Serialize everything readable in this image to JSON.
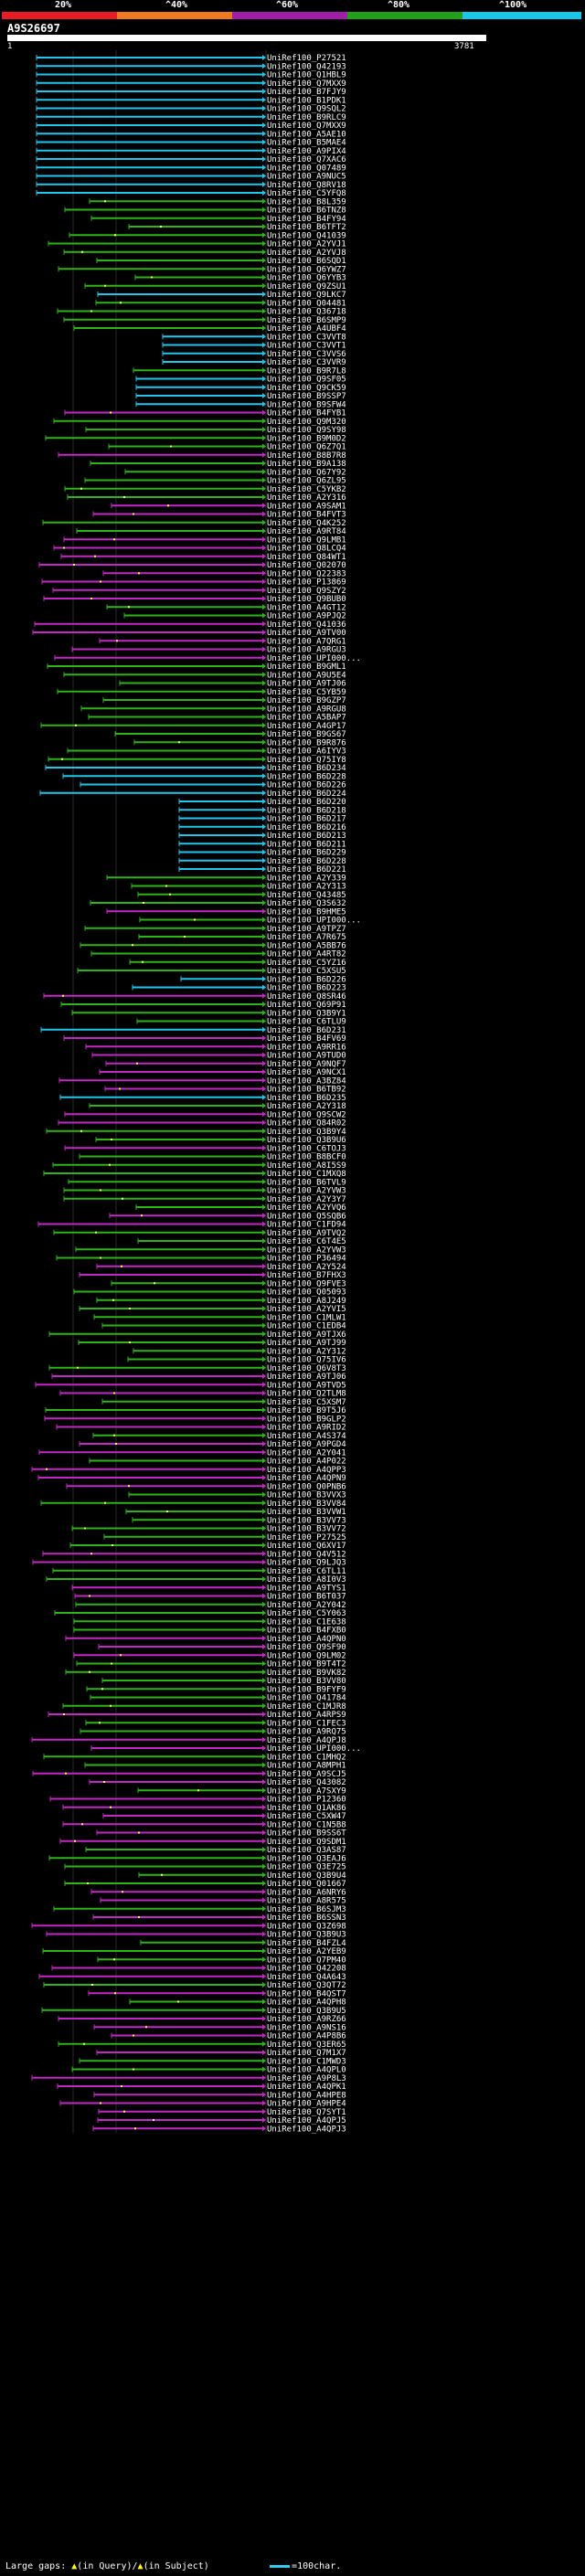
{
  "scale": {
    "labels": [
      "20%",
      "^40%",
      "^60%",
      "^80%",
      "^100%"
    ],
    "colors": [
      "#e81c24",
      "#f07a20",
      "#a01fa8",
      "#22a11a",
      "#19c8e8"
    ]
  },
  "query": {
    "id": "A9S26697",
    "start": "1",
    "end": "3781"
  },
  "hits": [
    {
      "label": "UniRef100_P27521",
      "c": "b"
    },
    {
      "label": "UniRef100_Q42193",
      "c": "b"
    },
    {
      "label": "UniRef100_Q1HBL9",
      "c": "b"
    },
    {
      "label": "UniRef100_Q7MXX9",
      "c": "b"
    },
    {
      "label": "UniRef100_B7FJY9",
      "c": "b"
    },
    {
      "label": "UniRef100_B1PDK1",
      "c": "b"
    },
    {
      "label": "UniRef100_Q9SQL2",
      "c": "b"
    },
    {
      "label": "UniRef100_B9RLC9",
      "c": "b"
    },
    {
      "label": "UniRef100_Q7MXX9",
      "c": "b"
    },
    {
      "label": "UniRef100_A5AE10",
      "c": "b"
    },
    {
      "label": "UniRef100_B5MAE4",
      "c": "b"
    },
    {
      "label": "UniRef100_A9PIX4",
      "c": "b"
    },
    {
      "label": "UniRef100_Q7XAC6",
      "c": "b"
    },
    {
      "label": "UniRef100_Q07489",
      "c": "b"
    },
    {
      "label": "UniRef100_A9NUC5",
      "c": "b"
    },
    {
      "label": "UniRef100_Q8RV18",
      "c": "b"
    },
    {
      "label": "UniRef100_C5YFQ8",
      "c": "b"
    },
    {
      "label": "UniRef100_B8L359",
      "c": "g"
    },
    {
      "label": "UniRef100_B6TNZ8",
      "c": "g"
    },
    {
      "label": "UniRef100_B4FY94",
      "c": "g"
    },
    {
      "label": "UniRef100_B6TFT2",
      "c": "g"
    },
    {
      "label": "UniRef100_Q41039",
      "c": "g"
    },
    {
      "label": "UniRef100_A2YVJ1",
      "c": "g"
    },
    {
      "label": "UniRef100_A2YVJ8",
      "c": "g"
    },
    {
      "label": "UniRef100_B6SQD1",
      "c": "g"
    },
    {
      "label": "UniRef100_Q6YWZ7",
      "c": "g"
    },
    {
      "label": "UniRef100_Q6YYB3",
      "c": "g"
    },
    {
      "label": "UniRef100_Q9ZSU1",
      "c": "g"
    },
    {
      "label": "UniRef100_Q9LKC7",
      "c": "b"
    },
    {
      "label": "UniRef100_Q04481",
      "c": "g"
    },
    {
      "label": "UniRef100_Q36718",
      "c": "g"
    },
    {
      "label": "UniRef100_B6SMP9",
      "c": "g"
    },
    {
      "label": "UniRef100_A4UBF4",
      "c": "g"
    },
    {
      "label": "UniRef100_C3VVT8",
      "c": "b"
    },
    {
      "label": "UniRef100_C3VVT1",
      "c": "b"
    },
    {
      "label": "UniRef100_C3VVS6",
      "c": "b"
    },
    {
      "label": "UniRef100_C3VVR9",
      "c": "b"
    },
    {
      "label": "UniRef100_B9R7L8",
      "c": "g"
    },
    {
      "label": "UniRef100_Q9SF05",
      "c": "b"
    },
    {
      "label": "UniRef100_Q9CK59",
      "c": "b"
    },
    {
      "label": "UniRef100_B9SSP7",
      "c": "b"
    },
    {
      "label": "UniRef100_B9SFW4",
      "c": "b"
    },
    {
      "label": "UniRef100_B4FYB1",
      "c": "m"
    },
    {
      "label": "UniRef100_Q9M320",
      "c": "g"
    },
    {
      "label": "UniRef100_Q9SY98",
      "c": "g"
    },
    {
      "label": "UniRef100_B9M0D2",
      "c": "g"
    },
    {
      "label": "UniRef100_Q6Z7Q1",
      "c": "g"
    },
    {
      "label": "UniRef100_B8B7R8",
      "c": "m"
    },
    {
      "label": "UniRef100_B9A138",
      "c": "g"
    },
    {
      "label": "UniRef100_Q67Y92",
      "c": "g"
    },
    {
      "label": "UniRef100_Q6ZL95",
      "c": "g"
    },
    {
      "label": "UniRef100_C5YKB2",
      "c": "g"
    },
    {
      "label": "UniRef100_A2Y316",
      "c": "g"
    },
    {
      "label": "UniRef100_A9SAM1",
      "c": "m"
    },
    {
      "label": "UniRef100_B4FVT3",
      "c": "m"
    },
    {
      "label": "UniRef100_Q4K252",
      "c": "g"
    },
    {
      "label": "UniRef100_A9RT84",
      "c": "g"
    },
    {
      "label": "UniRef100_Q9LMB1",
      "c": "m"
    },
    {
      "label": "UniRef100_Q8LCQ4",
      "c": "m"
    },
    {
      "label": "UniRef100_Q84WT1",
      "c": "m"
    },
    {
      "label": "UniRef100_Q02070",
      "c": "m"
    },
    {
      "label": "UniRef100_Q22383",
      "c": "m"
    },
    {
      "label": "UniRef100_P13869",
      "c": "m"
    },
    {
      "label": "UniRef100_Q9SZY2",
      "c": "m"
    },
    {
      "label": "UniRef100_Q9BUB0",
      "c": "m"
    },
    {
      "label": "UniRef100_A4GT12",
      "c": "g"
    },
    {
      "label": "UniRef100_A9PJQ2",
      "c": "g"
    },
    {
      "label": "UniRef100_Q41036",
      "c": "m"
    },
    {
      "label": "UniRef100_A9TV00",
      "c": "m"
    },
    {
      "label": "UniRef100_A7QRG1",
      "c": "m"
    },
    {
      "label": "UniRef100_A9RGU3",
      "c": "m"
    },
    {
      "label": "UniRef100_UPI000...",
      "c": "m"
    },
    {
      "label": "UniRef100_B9GML1",
      "c": "g"
    },
    {
      "label": "UniRef100_A9U5E4",
      "c": "g"
    },
    {
      "label": "UniRef100_A9TJ06",
      "c": "g"
    },
    {
      "label": "UniRef100_C5YB59",
      "c": "g"
    },
    {
      "label": "UniRef100_B9GZP7",
      "c": "g"
    },
    {
      "label": "UniRef100_A9RGU8",
      "c": "g"
    },
    {
      "label": "UniRef100_A5BAP7",
      "c": "g"
    },
    {
      "label": "UniRef100_A4GP17",
      "c": "g"
    },
    {
      "label": "UniRef100_B9GS67",
      "c": "g"
    },
    {
      "label": "UniRef100_B9R876",
      "c": "g"
    },
    {
      "label": "UniRef100_A6IYV3",
      "c": "g"
    },
    {
      "label": "UniRef100_Q75IY8",
      "c": "g"
    },
    {
      "label": "UniRef100_B6D234",
      "c": "b"
    },
    {
      "label": "UniRef100_B6D228",
      "c": "b"
    },
    {
      "label": "UniRef100_B6D226",
      "c": "b"
    },
    {
      "label": "UniRef100_B6D224",
      "c": "b"
    },
    {
      "label": "UniRef100_B6D220",
      "c": "b"
    },
    {
      "label": "UniRef100_B6D218",
      "c": "b"
    },
    {
      "label": "UniRef100_B6D217",
      "c": "b"
    },
    {
      "label": "UniRef100_B6D216",
      "c": "b"
    },
    {
      "label": "UniRef100_B6D213",
      "c": "b"
    },
    {
      "label": "UniRef100_B6D211",
      "c": "b"
    },
    {
      "label": "UniRef100_B6D229",
      "c": "b"
    },
    {
      "label": "UniRef100_B6D228",
      "c": "b"
    },
    {
      "label": "UniRef100_B6D221",
      "c": "b"
    },
    {
      "label": "UniRef100_A2Y339",
      "c": "g"
    },
    {
      "label": "UniRef100_A2Y313",
      "c": "g"
    },
    {
      "label": "UniRef100_Q43485",
      "c": "g"
    },
    {
      "label": "UniRef100_Q3S632",
      "c": "g"
    },
    {
      "label": "UniRef100_B9HME5",
      "c": "m"
    },
    {
      "label": "UniRef100_UPI000...",
      "c": "g"
    },
    {
      "label": "UniRef100_A9TPZ7",
      "c": "g"
    },
    {
      "label": "UniRef100_A7R675",
      "c": "g"
    },
    {
      "label": "UniRef100_A5BB76",
      "c": "g"
    },
    {
      "label": "UniRef100_A4RT82",
      "c": "g"
    },
    {
      "label": "UniRef100_C5YZ16",
      "c": "g"
    },
    {
      "label": "UniRef100_C5XSU5",
      "c": "g"
    },
    {
      "label": "UniRef100_B6D226",
      "c": "b"
    },
    {
      "label": "UniRef100_B6D223",
      "c": "b"
    },
    {
      "label": "UniRef100_Q8SR46",
      "c": "m"
    },
    {
      "label": "UniRef100_Q69P91",
      "c": "g"
    },
    {
      "label": "UniRef100_Q3B9Y1",
      "c": "g"
    },
    {
      "label": "UniRef100_C6TLU9",
      "c": "g"
    },
    {
      "label": "UniRef100_B6D231",
      "c": "b"
    },
    {
      "label": "UniRef100_B4FV69",
      "c": "m"
    },
    {
      "label": "UniRef100_A9RR16",
      "c": "m"
    },
    {
      "label": "UniRef100_A9TUD0",
      "c": "m"
    },
    {
      "label": "UniRef100_A9NQF7",
      "c": "m"
    },
    {
      "label": "UniRef100_A9NCX1",
      "c": "m"
    },
    {
      "label": "UniRef100_A3BZ84",
      "c": "m"
    },
    {
      "label": "UniRef100_B6TB92",
      "c": "m"
    },
    {
      "label": "UniRef100_B6D235",
      "c": "b"
    },
    {
      "label": "UniRef100_A2Y318",
      "c": "g"
    },
    {
      "label": "UniRef100_Q9SCW2",
      "c": "m"
    },
    {
      "label": "UniRef100_Q84R02",
      "c": "m"
    },
    {
      "label": "UniRef100_Q3B9Y4",
      "c": "g"
    },
    {
      "label": "UniRef100_Q3B9U6",
      "c": "g"
    },
    {
      "label": "UniRef100_C6TOJ3",
      "c": "m"
    },
    {
      "label": "UniRef100_B8BCF0",
      "c": "g"
    },
    {
      "label": "UniRef100_A8I5S9",
      "c": "g"
    },
    {
      "label": "UniRef100_C1MXQ8",
      "c": "g"
    },
    {
      "label": "UniRef100_B6TVL9",
      "c": "g"
    },
    {
      "label": "UniRef100_A2YVW3",
      "c": "g"
    },
    {
      "label": "UniRef100_A2Y3Y7",
      "c": "g"
    },
    {
      "label": "UniRef100_A2YVQ6",
      "c": "g"
    },
    {
      "label": "UniRef100_Q5SQB6",
      "c": "m"
    },
    {
      "label": "UniRef100_C1FD94",
      "c": "m"
    },
    {
      "label": "UniRef100_A9TVQ2",
      "c": "g"
    },
    {
      "label": "UniRef100_C6T4E5",
      "c": "g"
    },
    {
      "label": "UniRef100_A2YVW3",
      "c": "g"
    },
    {
      "label": "UniRef100_P36494",
      "c": "g"
    },
    {
      "label": "UniRef100_A2Y524",
      "c": "m"
    },
    {
      "label": "UniRef100_B7FHX3",
      "c": "m"
    },
    {
      "label": "UniRef100_Q9FVE3",
      "c": "g"
    },
    {
      "label": "UniRef100_Q05093",
      "c": "g"
    },
    {
      "label": "UniRef100_A8J249",
      "c": "g"
    },
    {
      "label": "UniRef100_A2YVI5",
      "c": "g"
    },
    {
      "label": "UniRef100_C1MLW1",
      "c": "g"
    },
    {
      "label": "UniRef100_C1EDB4",
      "c": "g"
    },
    {
      "label": "UniRef100_A9TJX6",
      "c": "g"
    },
    {
      "label": "UniRef100_A9TJ99",
      "c": "g"
    },
    {
      "label": "UniRef100_A2Y312",
      "c": "g"
    },
    {
      "label": "UniRef100_Q75IV6",
      "c": "g"
    },
    {
      "label": "UniRef100_Q6V8T3",
      "c": "g"
    },
    {
      "label": "UniRef100_A9TJ06",
      "c": "m"
    },
    {
      "label": "UniRef100_A9TVD5",
      "c": "m"
    },
    {
      "label": "UniRef100_Q2TLM8",
      "c": "m"
    },
    {
      "label": "UniRef100_C5XSM7",
      "c": "g"
    },
    {
      "label": "UniRef100_B9T5J6",
      "c": "g"
    },
    {
      "label": "UniRef100_B9GLP2",
      "c": "m"
    },
    {
      "label": "UniRef100_A9RID2",
      "c": "m"
    },
    {
      "label": "UniRef100_A4S374",
      "c": "g"
    },
    {
      "label": "UniRef100_A9PGD4",
      "c": "m"
    },
    {
      "label": "UniRef100_A2Y041",
      "c": "m"
    },
    {
      "label": "UniRef100_A4P022",
      "c": "g"
    },
    {
      "label": "UniRef100_A4QPP3",
      "c": "m"
    },
    {
      "label": "UniRef100_A4QPN9",
      "c": "m"
    },
    {
      "label": "UniRef100_Q0PNB6",
      "c": "m"
    },
    {
      "label": "UniRef100_B3VVX3",
      "c": "g"
    },
    {
      "label": "UniRef100_B3VV84",
      "c": "g"
    },
    {
      "label": "UniRef100_B3VVW1",
      "c": "g"
    },
    {
      "label": "UniRef100_B3VV73",
      "c": "g"
    },
    {
      "label": "UniRef100_B3VV72",
      "c": "g"
    },
    {
      "label": "UniRef100_P27525",
      "c": "g"
    },
    {
      "label": "UniRef100_Q6XV17",
      "c": "g"
    },
    {
      "label": "UniRef100_Q4V512",
      "c": "m"
    },
    {
      "label": "UniRef100_Q9LJQ3",
      "c": "m"
    },
    {
      "label": "UniRef100_C6TL11",
      "c": "g"
    },
    {
      "label": "UniRef100_A8I0V3",
      "c": "g"
    },
    {
      "label": "UniRef100_A9TYS1",
      "c": "m"
    },
    {
      "label": "UniRef100_B6T037",
      "c": "m"
    },
    {
      "label": "UniRef100_A2Y042",
      "c": "g"
    },
    {
      "label": "UniRef100_C5Y063",
      "c": "g"
    },
    {
      "label": "UniRef100_C1E638",
      "c": "g"
    },
    {
      "label": "UniRef100_B4FXB0",
      "c": "g"
    },
    {
      "label": "UniRef100_A4QPN0",
      "c": "m"
    },
    {
      "label": "UniRef100_Q9SF90",
      "c": "m"
    },
    {
      "label": "UniRef100_Q9LM02",
      "c": "m"
    },
    {
      "label": "UniRef100_B9T4T2",
      "c": "g"
    },
    {
      "label": "UniRef100_B9VK82",
      "c": "g"
    },
    {
      "label": "UniRef100_B3VV80",
      "c": "g"
    },
    {
      "label": "UniRef100_B9FYF9",
      "c": "g"
    },
    {
      "label": "UniRef100_Q41784",
      "c": "g"
    },
    {
      "label": "UniRef100_C1MJR8",
      "c": "g"
    },
    {
      "label": "UniRef100_A4RPS9",
      "c": "m"
    },
    {
      "label": "UniRef100_C1FEC3",
      "c": "g"
    },
    {
      "label": "UniRef100_A9RQ75",
      "c": "g"
    },
    {
      "label": "UniRef100_A4QPJ8",
      "c": "m"
    },
    {
      "label": "UniRef100_UPI000...",
      "c": "m"
    },
    {
      "label": "UniRef100_C1MHQ2",
      "c": "g"
    },
    {
      "label": "UniRef100_A8MPH1",
      "c": "g"
    },
    {
      "label": "UniRef100_A9SCJ5",
      "c": "m"
    },
    {
      "label": "UniRef100_Q43082",
      "c": "m"
    },
    {
      "label": "UniRef100_A7SXY9",
      "c": "g"
    },
    {
      "label": "UniRef100_P12360",
      "c": "m"
    },
    {
      "label": "UniRef100_Q1AK86",
      "c": "m"
    },
    {
      "label": "UniRef100_C5XW47",
      "c": "m"
    },
    {
      "label": "UniRef100_C1N5B8",
      "c": "m"
    },
    {
      "label": "UniRef100_B9SS6T",
      "c": "m"
    },
    {
      "label": "UniRef100_Q9SDM1",
      "c": "m"
    },
    {
      "label": "UniRef100_Q3AS87",
      "c": "g"
    },
    {
      "label": "UniRef100_Q3EAJ6",
      "c": "g"
    },
    {
      "label": "UniRef100_Q3E725",
      "c": "g"
    },
    {
      "label": "UniRef100_Q3B9U4",
      "c": "g"
    },
    {
      "label": "UniRef100_Q01667",
      "c": "g"
    },
    {
      "label": "UniRef100_A6NRY6",
      "c": "m"
    },
    {
      "label": "UniRef100_A8R575",
      "c": "m"
    },
    {
      "label": "UniRef100_B6SJM3",
      "c": "g"
    },
    {
      "label": "UniRef100_B6SSN3",
      "c": "m"
    },
    {
      "label": "UniRef100_Q3Z698",
      "c": "m"
    },
    {
      "label": "UniRef100_Q3B9U3",
      "c": "m"
    },
    {
      "label": "UniRef100_B4FZL4",
      "c": "g"
    },
    {
      "label": "UniRef100_A2YEB9",
      "c": "g"
    },
    {
      "label": "UniRef100_Q7PM40",
      "c": "g"
    },
    {
      "label": "UniRef100_Q42208",
      "c": "m"
    },
    {
      "label": "UniRef100_Q4A643",
      "c": "m"
    },
    {
      "label": "UniRef100_Q3QT72",
      "c": "g"
    },
    {
      "label": "UniRef100_B4QST7",
      "c": "m"
    },
    {
      "label": "UniRef100_A4QPH8",
      "c": "g"
    },
    {
      "label": "UniRef100_Q3B9U5",
      "c": "g"
    },
    {
      "label": "UniRef100_A9RZ66",
      "c": "m"
    },
    {
      "label": "UniRef100_A9NS16",
      "c": "m"
    },
    {
      "label": "UniRef100_A4P8B6",
      "c": "m"
    },
    {
      "label": "UniRef100_Q3ER65",
      "c": "g"
    },
    {
      "label": "UniRef100_Q7M1X7",
      "c": "m"
    },
    {
      "label": "UniRef100_C1MWD3",
      "c": "g"
    },
    {
      "label": "UniRef100_A4QPL0",
      "c": "g"
    },
    {
      "label": "UniRef100_A9P8L3",
      "c": "m"
    },
    {
      "label": "UniRef100_A4QPK1",
      "c": "m"
    },
    {
      "label": "UniRef100_A4HPE8",
      "c": "m"
    },
    {
      "label": "UniRef100_A9HPE4",
      "c": "m"
    },
    {
      "label": "UniRef100_Q7SYT1",
      "c": "m"
    },
    {
      "label": "UniRef100_A4QPJ5",
      "c": "m"
    },
    {
      "label": "UniRef100_A4QPJ3",
      "c": "m"
    }
  ],
  "footer": {
    "large_gaps": "Large gaps:",
    "in_query": "(in Query)/",
    "in_subject": "(in Subject)",
    "scale_note": "=100char."
  }
}
